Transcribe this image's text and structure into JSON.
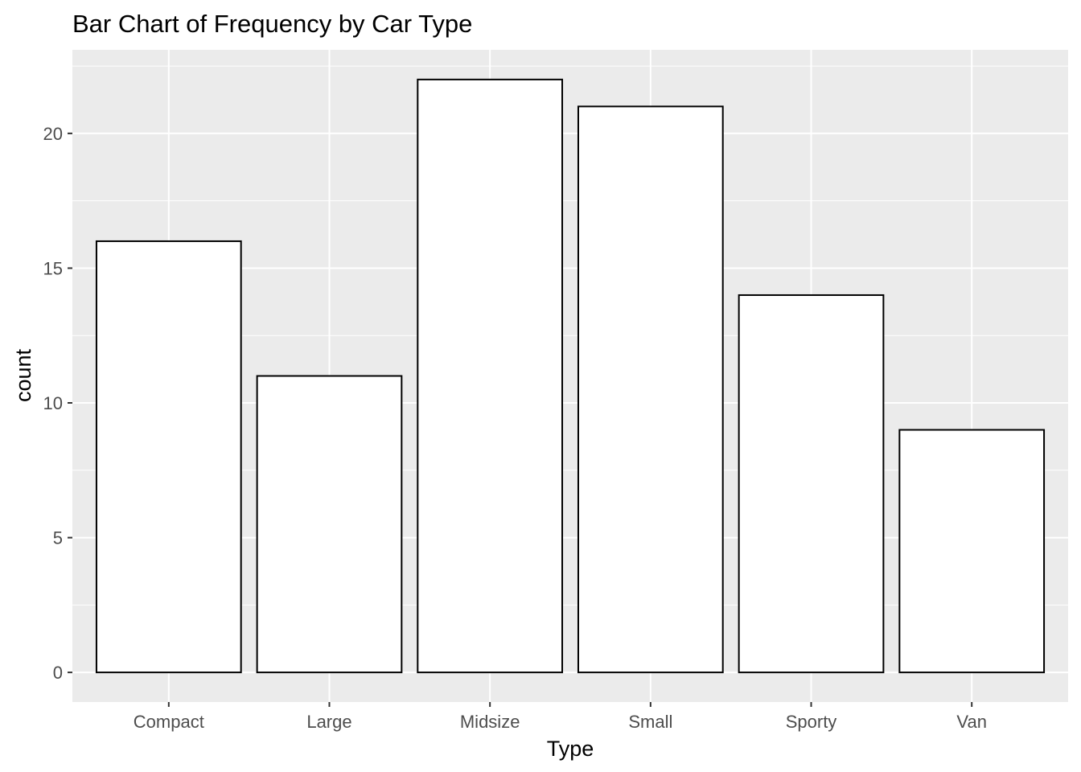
{
  "chart_data": {
    "type": "bar",
    "title": "Bar Chart of Frequency by Car Type",
    "xlabel": "Type",
    "ylabel": "count",
    "categories": [
      "Compact",
      "Large",
      "Midsize",
      "Small",
      "Sporty",
      "Van"
    ],
    "values": [
      16,
      11,
      22,
      21,
      14,
      9
    ],
    "ylim": [
      -1.1,
      23.1
    ],
    "yticks": [
      0,
      5,
      10,
      15,
      20
    ],
    "grid": true,
    "legend": "none",
    "colors": {
      "panel_background": "#ebebeb",
      "grid_line": "#ffffff",
      "bar_fill": "#ffffff",
      "bar_outline": "#000000",
      "tick_label": "#4d4d4d",
      "tick_mark": "#333333"
    }
  }
}
